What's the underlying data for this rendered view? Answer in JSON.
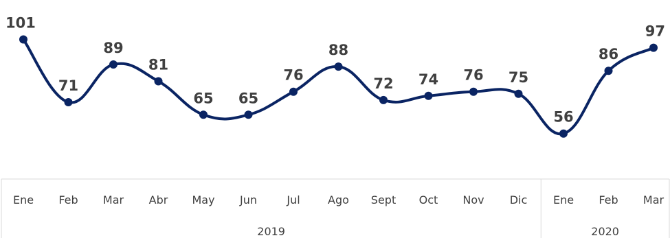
{
  "chart_data": {
    "type": "line",
    "categories": [
      "Ene",
      "Feb",
      "Mar",
      "Abr",
      "May",
      "Jun",
      "Jul",
      "Ago",
      "Sept",
      "Oct",
      "Nov",
      "Dic",
      "Ene",
      "Feb",
      "Mar"
    ],
    "groups": [
      {
        "label": "2019",
        "count": 12
      },
      {
        "label": "2020",
        "count": 3
      }
    ],
    "series": [
      {
        "values": [
          101,
          71,
          89,
          81,
          65,
          65,
          76,
          88,
          72,
          74,
          76,
          75,
          56,
          86,
          97
        ]
      }
    ],
    "data_labels": true,
    "smooth": true,
    "colors": {
      "line": "#0a2463",
      "marker": "#0a2463"
    },
    "grid": false,
    "legend": "none",
    "title": "",
    "xlabel": "",
    "ylabel": ""
  }
}
